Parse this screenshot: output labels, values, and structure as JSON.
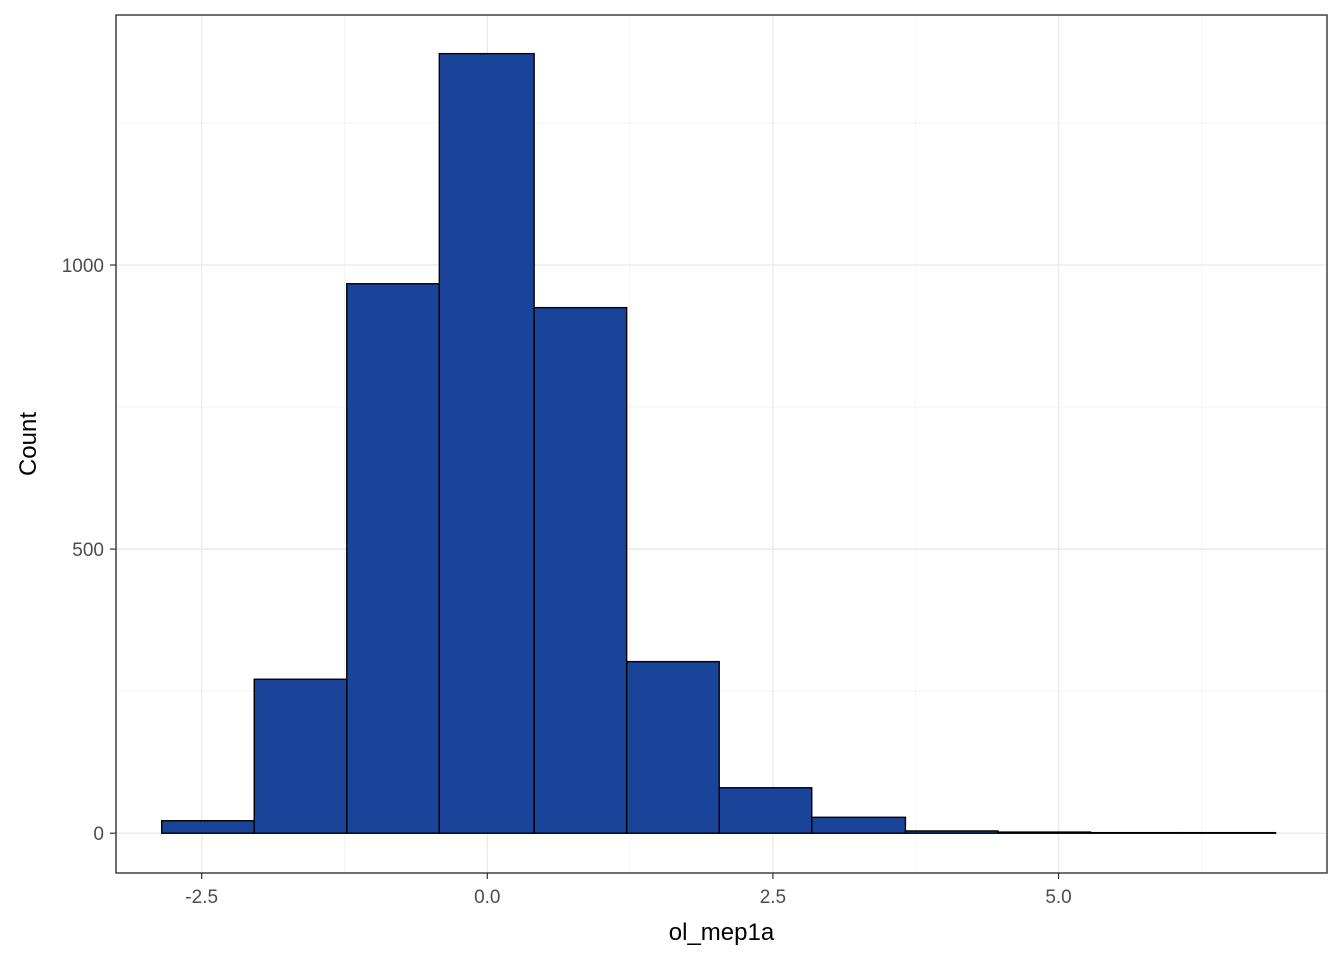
{
  "chart_data": {
    "type": "bar",
    "subtype": "histogram",
    "title": "",
    "xlabel": "ol_mep1a",
    "ylabel": "Count",
    "xlim": [
      -3.25,
      7.35
    ],
    "ylim": [
      -70,
      1440
    ],
    "x_ticks": [
      -2.5,
      0.0,
      2.5,
      5.0
    ],
    "x_tick_labels": [
      "-2.5",
      "0.0",
      "2.5",
      "5.0"
    ],
    "y_ticks": [
      0,
      500,
      1000
    ],
    "y_tick_labels": [
      "0",
      "500",
      "1000"
    ],
    "y_minor_ticks": [
      250,
      750,
      1250
    ],
    "grid": true,
    "legend": "none",
    "bar_fill": "#1a4499",
    "bar_outline": "#000000",
    "bins": [
      {
        "x0": -2.85,
        "x1": -2.04,
        "count": 22
      },
      {
        "x0": -2.04,
        "x1": -1.23,
        "count": 271
      },
      {
        "x0": -1.23,
        "x1": -0.42,
        "count": 967
      },
      {
        "x0": -0.42,
        "x1": 0.41,
        "count": 1372
      },
      {
        "x0": 0.41,
        "x1": 1.22,
        "count": 925
      },
      {
        "x0": 1.22,
        "x1": 2.03,
        "count": 302
      },
      {
        "x0": 2.03,
        "x1": 2.84,
        "count": 80
      },
      {
        "x0": 2.84,
        "x1": 3.66,
        "count": 28
      },
      {
        "x0": 3.66,
        "x1": 4.47,
        "count": 4
      },
      {
        "x0": 4.47,
        "x1": 5.28,
        "count": 2
      },
      {
        "x0": 5.28,
        "x1": 6.09,
        "count": 1
      },
      {
        "x0": 6.09,
        "x1": 6.9,
        "count": 1
      }
    ]
  }
}
